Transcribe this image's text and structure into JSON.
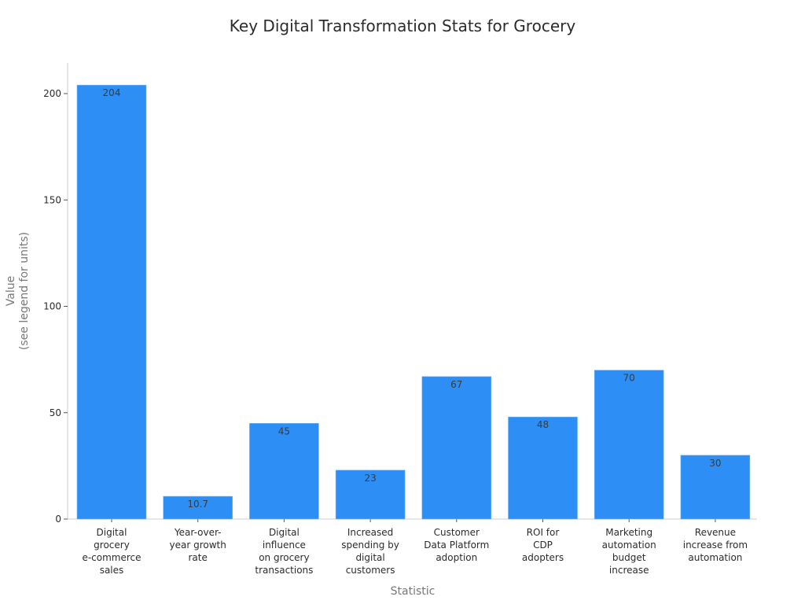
{
  "chart_data": {
    "type": "bar",
    "title": "Key Digital Transformation Stats for Grocery",
    "xlabel": "Statistic",
    "ylabel": [
      "Value",
      "(see legend for units)"
    ],
    "ylim": [
      0,
      215
    ],
    "yticks": [
      0,
      50,
      100,
      150,
      200
    ],
    "grid": false,
    "legend": null,
    "bar_color": "#2d8ff5",
    "categories": [
      [
        "Digital",
        "grocery",
        "e-commerce",
        "sales"
      ],
      [
        "Year-over-",
        "year growth",
        "rate"
      ],
      [
        "Digital",
        "influence",
        "on grocery",
        "transactions"
      ],
      [
        "Increased",
        "spending by",
        "digital",
        "customers"
      ],
      [
        "Customer",
        "Data Platform",
        "adoption"
      ],
      [
        "ROI for",
        "CDP",
        "adopters"
      ],
      [
        "Marketing",
        "automation",
        "budget",
        "increase"
      ],
      [
        "Revenue",
        "increase from",
        "automation"
      ]
    ],
    "values": [
      204,
      10.7,
      45,
      23,
      67,
      48,
      70,
      30
    ],
    "value_labels": [
      "204",
      "10.7",
      "45",
      "23",
      "67",
      "48",
      "70",
      "30"
    ]
  }
}
